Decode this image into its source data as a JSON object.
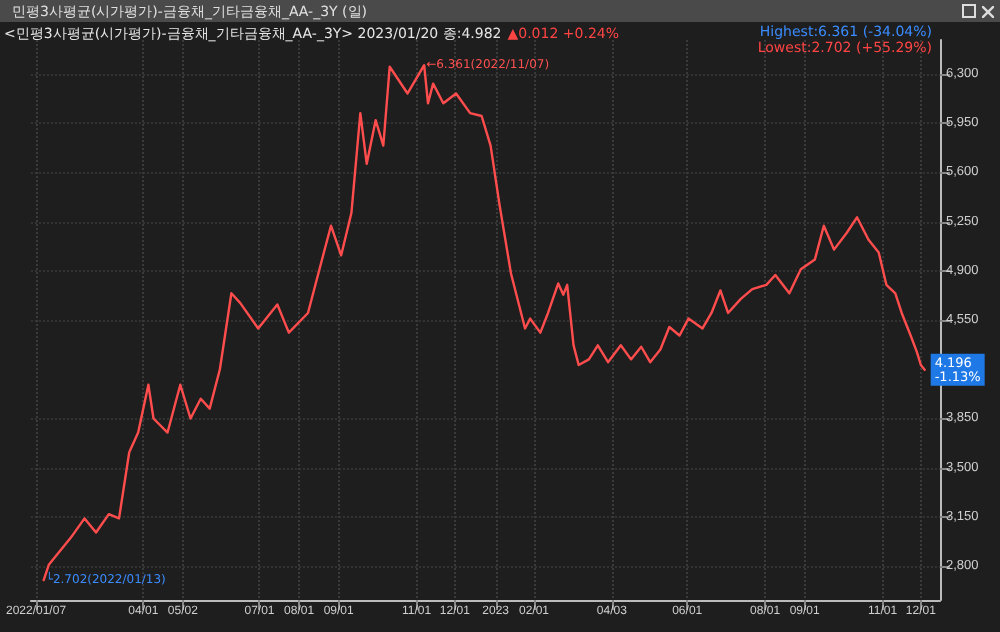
{
  "chart_data": {
    "type": "line",
    "title": "민평3사평균(시가평가)-금융채_기타금융채_AA-_3Y (일)",
    "subtitle": "<민평3사평균(시가평가)-금융채_기타금융채_AA-_3Y> 2023/01/20 종:4.982",
    "annotations": [
      "▲0.012 +0.24%",
      "Highest:6.361 (-34.04%)",
      "Lowest:2.702 (+55.29%)",
      {
        "text": "←6.361(2022/11/07)",
        "x": "2022-11-07",
        "y": 6361
      },
      {
        "text": "└2.702(2022/01/13)",
        "x": "2022-01-13",
        "y": 2702
      },
      {
        "text": "4.196 -1.13%",
        "x": "2023-12-04",
        "y": 4196
      }
    ],
    "x": [
      "2022-01-13",
      "2022-01-17",
      "2022-02-03",
      "2022-02-14",
      "2022-02-23",
      "2022-03-05",
      "2022-03-13",
      "2022-03-21",
      "2022-03-28",
      "2022-04-05",
      "2022-04-09",
      "2022-04-20",
      "2022-04-30",
      "2022-05-08",
      "2022-05-16",
      "2022-05-23",
      "2022-05-31",
      "2022-06-09",
      "2022-06-16",
      "2022-06-30",
      "2022-07-15",
      "2022-07-24",
      "2022-08-08",
      "2022-08-19",
      "2022-08-26",
      "2022-09-03",
      "2022-09-11",
      "2022-09-18",
      "2022-09-23",
      "2022-09-30",
      "2022-10-06",
      "2022-10-11",
      "2022-10-25",
      "2022-11-07",
      "2022-11-10",
      "2022-11-14",
      "2022-11-22",
      "2022-12-02",
      "2022-12-13",
      "2022-12-22",
      "2022-12-29",
      "2023-01-05",
      "2023-01-14",
      "2023-01-25",
      "2023-01-29",
      "2023-02-06",
      "2023-02-12",
      "2023-02-20",
      "2023-02-24",
      "2023-02-27",
      "2023-03-04",
      "2023-03-08",
      "2023-03-16",
      "2023-03-23",
      "2023-03-31",
      "2023-04-10",
      "2023-04-18",
      "2023-04-26",
      "2023-05-03",
      "2023-05-11",
      "2023-05-18",
      "2023-05-26",
      "2023-06-02",
      "2023-06-13",
      "2023-06-20",
      "2023-06-27",
      "2023-07-03",
      "2023-07-13",
      "2023-07-22",
      "2023-08-02",
      "2023-08-09",
      "2023-08-20",
      "2023-08-29",
      "2023-09-09",
      "2023-09-16",
      "2023-09-24",
      "2023-10-04",
      "2023-10-12",
      "2023-10-21",
      "2023-10-29",
      "2023-11-04",
      "2023-11-11",
      "2023-11-16",
      "2023-11-23",
      "2023-11-28",
      "2023-12-01",
      "2023-12-04"
    ],
    "series": [
      {
        "color": "#ff4d4d",
        "values": [
          2702,
          2810,
          3000,
          3140,
          3040,
          3170,
          3140,
          3610,
          3750,
          4090,
          3850,
          3750,
          4090,
          3850,
          3990,
          3920,
          4200,
          4740,
          4670,
          4490,
          4660,
          4460,
          4600,
          4980,
          5220,
          5010,
          5310,
          6020,
          5660,
          5970,
          5790,
          6350,
          6160,
          6361,
          6090,
          6230,
          6090,
          6160,
          6020,
          6000,
          5790,
          5370,
          4880,
          4490,
          4560,
          4460,
          4600,
          4810,
          4730,
          4800,
          4370,
          4230,
          4270,
          4370,
          4250,
          4370,
          4270,
          4360,
          4250,
          4340,
          4500,
          4440,
          4560,
          4490,
          4600,
          4760,
          4600,
          4700,
          4770,
          4800,
          4870,
          4740,
          4910,
          4980,
          5220,
          5050,
          5170,
          5280,
          5120,
          5030,
          4800,
          4740,
          4600,
          4440,
          4320,
          4230,
          4196
        ]
      }
    ],
    "xlim": [
      "2022-01-03",
      "2023-12-16"
    ],
    "xticks": [
      {
        "value": "2022-01-07",
        "label": "2022/01/07"
      },
      {
        "value": "2022-04-01",
        "label": "04/01"
      },
      {
        "value": "2022-05-02",
        "label": "05/02"
      },
      {
        "value": "2022-07-01",
        "label": "07/01"
      },
      {
        "value": "2022-08-01",
        "label": "08/01"
      },
      {
        "value": "2022-09-01",
        "label": "09/01"
      },
      {
        "value": "2022-11-01",
        "label": "11/01"
      },
      {
        "value": "2022-12-01",
        "label": "12/01"
      },
      {
        "value": "2023-01-02",
        "label": "2023"
      },
      {
        "value": "2023-02-01",
        "label": "02/01"
      },
      {
        "value": "2023-04-03",
        "label": "04/03"
      },
      {
        "value": "2023-06-01",
        "label": "06/01"
      },
      {
        "value": "2023-08-01",
        "label": "08/01"
      },
      {
        "value": "2023-09-01",
        "label": "09/01"
      },
      {
        "value": "2023-11-01",
        "label": "11/01"
      },
      {
        "value": "2023-12-01",
        "label": "12/01"
      }
    ],
    "ylim": [
      2560,
      6540
    ],
    "yticks": [
      {
        "value": 2800,
        "label": "2,800"
      },
      {
        "value": 3150,
        "label": "3,150"
      },
      {
        "value": 3500,
        "label": "3,500"
      },
      {
        "value": 3850,
        "label": "3,850"
      },
      {
        "value": 4550,
        "label": "4,550"
      },
      {
        "value": 4900,
        "label": "4,900"
      },
      {
        "value": 5250,
        "label": "5,250"
      },
      {
        "value": 5600,
        "label": "5,600"
      },
      {
        "value": 5950,
        "label": "5,950"
      },
      {
        "value": 6300,
        "label": "6,300"
      }
    ],
    "grid": true,
    "marker": "none",
    "line_style": "solid"
  }
}
